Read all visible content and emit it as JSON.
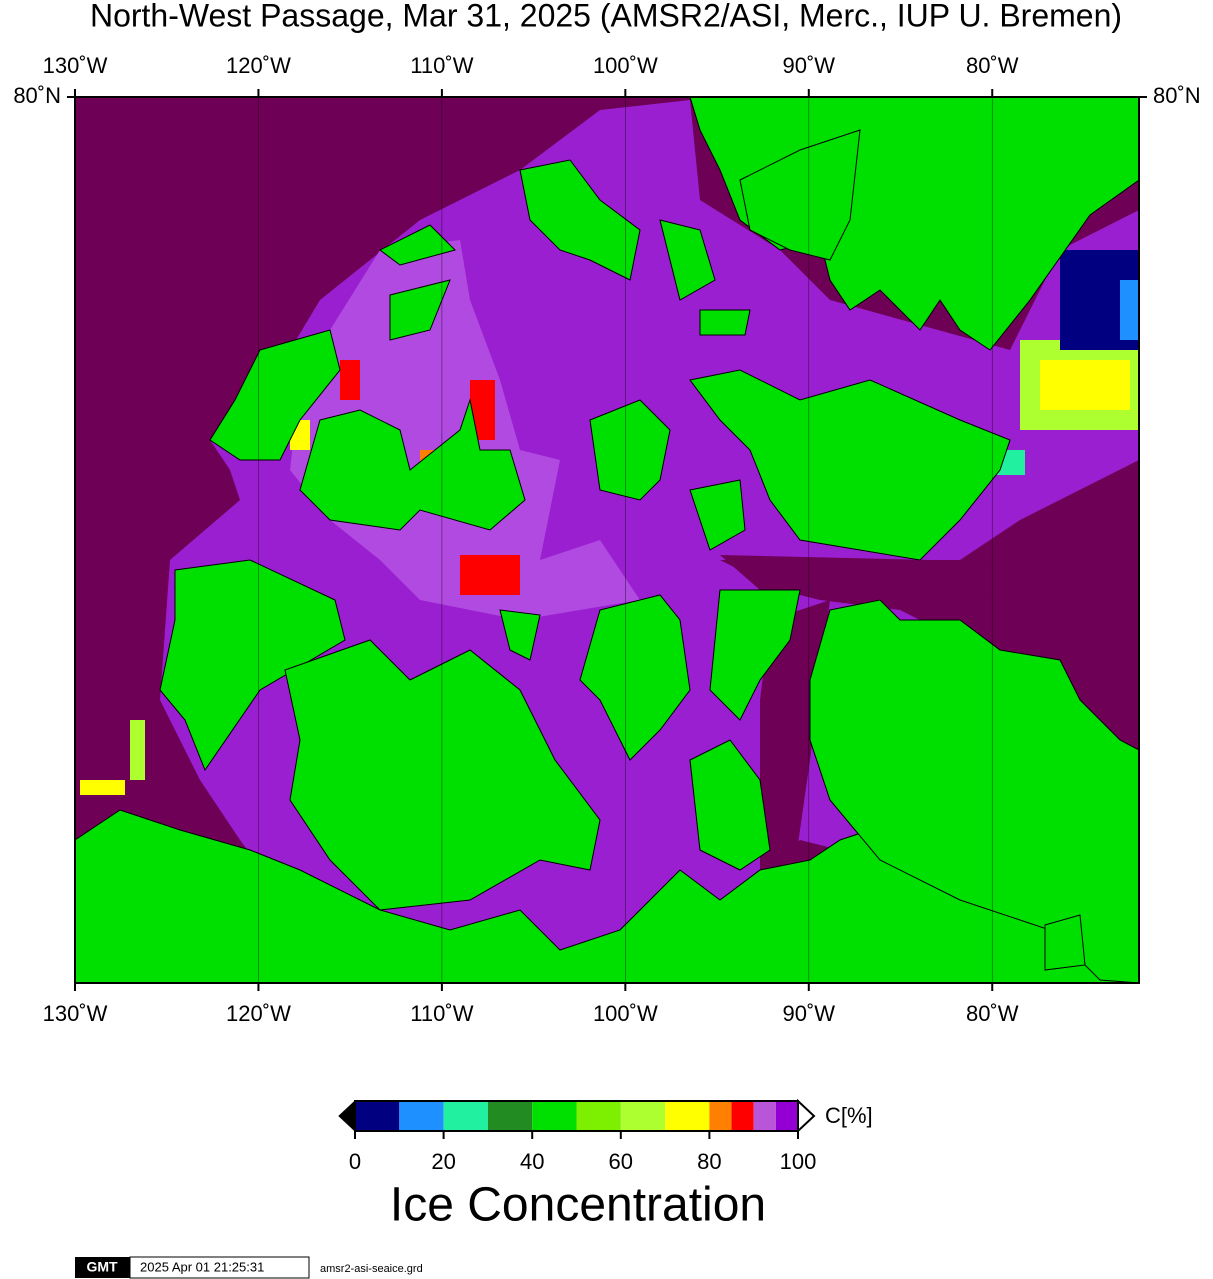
{
  "title": "North-West Passage, Mar 31, 2025 (AMSR2/ASI, Merc., IUP U. Bremen)",
  "map": {
    "xlim": [
      -130,
      -72
    ],
    "ylim": [
      67,
      80
    ],
    "lon_ticks": [
      {
        "value": -130,
        "label": "130˚W"
      },
      {
        "value": -120,
        "label": "120˚W"
      },
      {
        "value": -110,
        "label": "110˚W"
      },
      {
        "value": -100,
        "label": "100˚W"
      },
      {
        "value": -90,
        "label": "90˚W"
      },
      {
        "value": -80,
        "label": "80˚W"
      }
    ],
    "lat_ticks": [
      {
        "value": 80,
        "label": "80˚N"
      }
    ]
  },
  "colorbar": {
    "bounds": [
      0,
      10,
      20,
      30,
      40,
      50,
      60,
      70,
      80,
      85,
      90,
      95,
      100
    ],
    "colors": [
      "#000080",
      "#1e90ff",
      "#20f0a0",
      "#228b22",
      "#00e000",
      "#7cf000",
      "#adff2f",
      "#ffff00",
      "#ff7f00",
      "#ff0000",
      "#b855d8",
      "#9400d3"
    ],
    "ticks": [
      0,
      20,
      40,
      60,
      80,
      100
    ],
    "unit": "C[%]",
    "label": "Ice Concentration"
  },
  "footer": {
    "logo": "GMT",
    "timestamp": "2025 Apr 01 21:25:31",
    "file": "amsr2-asi-seaice.grd"
  }
}
